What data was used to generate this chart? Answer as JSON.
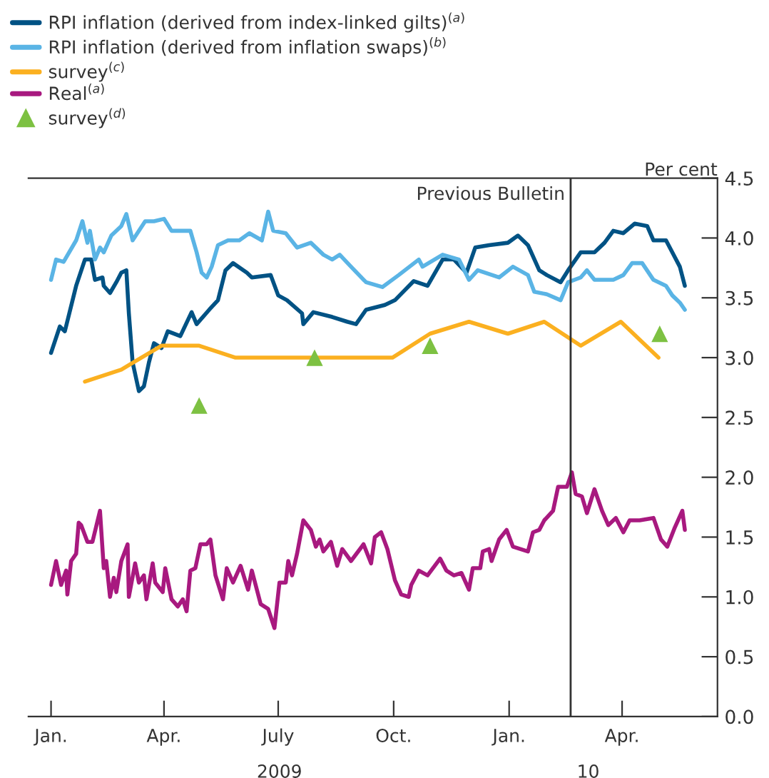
{
  "chart_data": {
    "type": "line",
    "ylabel": "Per cent",
    "xlim": [
      "2008-12-14",
      "2010-06-16"
    ],
    "xticks": [
      {
        "value": "2009-01-01",
        "label": "Jan."
      },
      {
        "value": "2009-04-01",
        "label": "Apr."
      },
      {
        "value": "2009-07-01",
        "label": "July"
      },
      {
        "value": "2009-10-01",
        "label": "Oct."
      },
      {
        "value": "2010-01-01",
        "label": "Jan."
      },
      {
        "value": "2010-04-01",
        "label": "Apr."
      }
    ],
    "x2lim": [
      "2008-12-14",
      "2010-06-16"
    ],
    "x2ticks": [
      {
        "value": "2009-07-02",
        "label": "2009"
      },
      {
        "value": "2010-03-05",
        "label": "10"
      }
    ],
    "ylim": [
      0,
      4.5
    ],
    "yticks": [
      {
        "value": 0,
        "label": "0.0"
      },
      {
        "value": 0.5,
        "label": "0.5"
      },
      {
        "value": 1,
        "label": "1.0"
      },
      {
        "value": 1.5,
        "label": "1.5"
      },
      {
        "value": 2,
        "label": "2.0"
      },
      {
        "value": 2.5,
        "label": "2.5"
      },
      {
        "value": 3,
        "label": "3.0"
      },
      {
        "value": 3.5,
        "label": "3.5"
      },
      {
        "value": 4,
        "label": "4.0"
      },
      {
        "value": 4.5,
        "label": "4.5"
      }
    ],
    "grid": false,
    "legend": "top left",
    "ref_lines": [
      {
        "axis": "x",
        "value": "2010-02-19",
        "label": "Previous Bulletin",
        "color": "#333333"
      }
    ],
    "series": [
      {
        "name": "RPI inflation (derived from index-linked gilts)$^{(a)}$",
        "color": "#005284",
        "x": [
          "2009-01-01",
          "2009-01-08",
          "2009-01-12",
          "2009-01-21",
          "2009-01-28",
          "2009-02-02",
          "2009-02-05",
          "2009-02-11",
          "2009-02-12",
          "2009-02-17",
          "2009-02-22",
          "2009-02-26",
          "2009-03-02",
          "2009-03-04",
          "2009-03-07",
          "2009-03-12",
          "2009-03-16",
          "2009-03-20",
          "2009-03-24",
          "2009-03-30",
          "2009-04-04",
          "2009-04-14",
          "2009-04-23",
          "2009-04-27",
          "2009-05-07",
          "2009-05-14",
          "2009-05-20",
          "2009-05-26",
          "2009-06-06",
          "2009-06-10",
          "2009-06-25",
          "2009-07-01",
          "2009-07-08",
          "2009-07-20",
          "2009-07-21",
          "2009-07-29",
          "2009-08-13",
          "2009-08-25",
          "2009-09-01",
          "2009-09-09",
          "2009-09-24",
          "2009-10-02",
          "2009-10-17",
          "2009-10-28",
          "2009-11-09",
          "2009-11-18",
          "2009-11-28",
          "2009-12-05",
          "2009-12-16",
          "2009-12-31",
          "2010-01-08",
          "2010-01-16",
          "2010-01-25",
          "2010-01-31",
          "2010-02-11",
          "2010-02-17",
          "2010-02-27",
          "2010-03-10",
          "2010-03-18",
          "2010-03-25",
          "2010-04-02",
          "2010-04-11",
          "2010-04-21",
          "2010-04-26",
          "2010-05-06",
          "2010-05-11",
          "2010-05-17",
          "2010-05-21"
        ],
        "values": [
          3.04,
          3.26,
          3.22,
          3.6,
          3.82,
          3.82,
          3.65,
          3.67,
          3.6,
          3.54,
          3.63,
          3.71,
          3.73,
          3.37,
          2.96,
          2.72,
          2.76,
          2.96,
          3.12,
          3.08,
          3.22,
          3.18,
          3.38,
          3.28,
          3.4,
          3.48,
          3.73,
          3.79,
          3.71,
          3.67,
          3.69,
          3.52,
          3.48,
          3.37,
          3.28,
          3.38,
          3.34,
          3.3,
          3.28,
          3.4,
          3.44,
          3.48,
          3.64,
          3.6,
          3.82,
          3.82,
          3.71,
          3.92,
          3.94,
          3.96,
          4.02,
          3.94,
          3.73,
          3.69,
          3.63,
          3.73,
          3.88,
          3.88,
          3.96,
          4.06,
          4.04,
          4.12,
          4.1,
          3.98,
          3.98,
          3.88,
          3.76,
          3.6
        ]
      },
      {
        "name": "RPI inflation (derived from inflation swaps)$^{(b)}$",
        "color": "#5ab4e5",
        "x": [
          "2009-01-01",
          "2009-01-05",
          "2009-01-11",
          "2009-01-21",
          "2009-01-26",
          "2009-01-30",
          "2009-02-01",
          "2009-02-05",
          "2009-02-09",
          "2009-02-12",
          "2009-02-18",
          "2009-02-26",
          "2009-03-02",
          "2009-03-07",
          "2009-03-17",
          "2009-03-24",
          "2009-04-01",
          "2009-04-07",
          "2009-04-22",
          "2009-04-27",
          "2009-05-01",
          "2009-05-05",
          "2009-05-09",
          "2009-05-14",
          "2009-05-22",
          "2009-05-31",
          "2009-06-08",
          "2009-06-18",
          "2009-06-23",
          "2009-06-27",
          "2009-07-07",
          "2009-07-16",
          "2009-07-27",
          "2009-08-06",
          "2009-08-13",
          "2009-08-19",
          "2009-08-28",
          "2009-09-09",
          "2009-09-22",
          "2009-10-05",
          "2009-10-21",
          "2009-10-24",
          "2009-11-09",
          "2009-11-22",
          "2009-11-30",
          "2009-12-07",
          "2009-12-24",
          "2010-01-04",
          "2010-01-16",
          "2010-01-21",
          "2010-01-31",
          "2010-02-11",
          "2010-02-17",
          "2010-02-27",
          "2010-03-04",
          "2010-03-10",
          "2010-03-25",
          "2010-04-02",
          "2010-04-09",
          "2010-04-17",
          "2010-04-26",
          "2010-05-06",
          "2010-05-11",
          "2010-05-17",
          "2010-05-21"
        ],
        "values": [
          3.65,
          3.82,
          3.8,
          3.98,
          4.14,
          3.96,
          4.06,
          3.82,
          3.92,
          3.88,
          4.02,
          4.1,
          4.2,
          3.98,
          4.14,
          4.14,
          4.16,
          4.06,
          4.06,
          3.88,
          3.71,
          3.67,
          3.76,
          3.94,
          3.98,
          3.98,
          4.04,
          3.98,
          4.22,
          4.06,
          4.04,
          3.92,
          3.96,
          3.86,
          3.82,
          3.86,
          3.76,
          3.63,
          3.59,
          3.69,
          3.82,
          3.76,
          3.86,
          3.82,
          3.65,
          3.73,
          3.67,
          3.76,
          3.69,
          3.55,
          3.53,
          3.48,
          3.63,
          3.67,
          3.73,
          3.65,
          3.65,
          3.69,
          3.79,
          3.79,
          3.65,
          3.6,
          3.52,
          3.46,
          3.4
        ]
      },
      {
        "name": "survey$^{(c)}$",
        "color": "#fbb020",
        "x": [
          "2009-01-28",
          "2009-02-26",
          "2009-03-30",
          "2009-04-29",
          "2009-05-28",
          "2009-09-30",
          "2009-10-30",
          "2009-11-30",
          "2009-12-31",
          "2010-01-29",
          "2010-02-27",
          "2010-03-31",
          "2010-04-30"
        ],
        "values": [
          2.8,
          2.9,
          3.1,
          3.1,
          3.0,
          3.0,
          3.2,
          3.3,
          3.2,
          3.3,
          3.1,
          3.3,
          3.0
        ]
      },
      {
        "name": "Real$^{(a)}$",
        "color": "#a8197f",
        "x": [
          "2009-01-01",
          "2009-01-05",
          "2009-01-09",
          "2009-01-13",
          "2009-01-14",
          "2009-01-17",
          "2009-01-21",
          "2009-01-23",
          "2009-01-25",
          "2009-01-30",
          "2009-02-03",
          "2009-02-09",
          "2009-02-12",
          "2009-02-14",
          "2009-02-17",
          "2009-02-20",
          "2009-02-22",
          "2009-02-26",
          "2009-03-03",
          "2009-03-04",
          "2009-03-09",
          "2009-03-12",
          "2009-03-16",
          "2009-03-18",
          "2009-03-23",
          "2009-03-25",
          "2009-03-31",
          "2009-04-02",
          "2009-04-07",
          "2009-04-12",
          "2009-04-16",
          "2009-04-19",
          "2009-04-22",
          "2009-04-26",
          "2009-04-30",
          "2009-05-05",
          "2009-05-08",
          "2009-05-12",
          "2009-05-18",
          "2009-05-21",
          "2009-05-26",
          "2009-06-01",
          "2009-06-07",
          "2009-06-10",
          "2009-06-17",
          "2009-06-23",
          "2009-06-28",
          "2009-07-02",
          "2009-07-07",
          "2009-07-09",
          "2009-07-12",
          "2009-07-16",
          "2009-07-21",
          "2009-07-27",
          "2009-07-31",
          "2009-08-03",
          "2009-08-06",
          "2009-08-12",
          "2009-08-17",
          "2009-08-21",
          "2009-08-28",
          "2009-09-07",
          "2009-09-13",
          "2009-09-16",
          "2009-09-21",
          "2009-09-26",
          "2009-10-02",
          "2009-10-07",
          "2009-10-13",
          "2009-10-15",
          "2009-10-21",
          "2009-10-28",
          "2009-11-07",
          "2009-11-12",
          "2009-11-18",
          "2009-11-24",
          "2009-11-30",
          "2009-12-03",
          "2009-12-09",
          "2009-12-11",
          "2009-12-16",
          "2009-12-18",
          "2009-12-24",
          "2009-12-30",
          "2010-01-04",
          "2010-01-16",
          "2010-01-20",
          "2010-01-25",
          "2010-01-29",
          "2010-02-05",
          "2010-02-09",
          "2010-02-16",
          "2010-02-20",
          "2010-02-23",
          "2010-02-28",
          "2010-03-04",
          "2010-03-10",
          "2010-03-16",
          "2010-03-21",
          "2010-03-27",
          "2010-04-02",
          "2010-04-07",
          "2010-04-15",
          "2010-04-26",
          "2010-05-02",
          "2010-05-07",
          "2010-05-13",
          "2010-05-19",
          "2010-05-21"
        ],
        "values": [
          1.1,
          1.3,
          1.1,
          1.22,
          1.02,
          1.3,
          1.36,
          1.62,
          1.6,
          1.46,
          1.46,
          1.72,
          1.24,
          1.3,
          1.0,
          1.16,
          1.04,
          1.3,
          1.44,
          1.0,
          1.28,
          1.12,
          1.18,
          0.98,
          1.28,
          1.12,
          1.04,
          1.24,
          0.98,
          0.92,
          0.98,
          0.88,
          1.22,
          1.24,
          1.44,
          1.44,
          1.48,
          1.18,
          0.98,
          1.24,
          1.12,
          1.26,
          1.06,
          1.22,
          0.94,
          0.9,
          0.74,
          1.12,
          1.12,
          1.3,
          1.18,
          1.36,
          1.64,
          1.56,
          1.42,
          1.48,
          1.38,
          1.46,
          1.26,
          1.4,
          1.3,
          1.44,
          1.28,
          1.5,
          1.54,
          1.4,
          1.14,
          1.02,
          1.0,
          1.1,
          1.22,
          1.18,
          1.32,
          1.22,
          1.18,
          1.2,
          1.06,
          1.24,
          1.24,
          1.38,
          1.4,
          1.3,
          1.48,
          1.56,
          1.42,
          1.38,
          1.54,
          1.56,
          1.64,
          1.72,
          1.92,
          1.92,
          2.04,
          1.86,
          1.84,
          1.7,
          1.9,
          1.72,
          1.6,
          1.66,
          1.54,
          1.64,
          1.64,
          1.66,
          1.48,
          1.42,
          1.58,
          1.72,
          1.56
        ]
      },
      {
        "type": "scatter",
        "name": "survey$^{(d)}$",
        "color": "#7dc142",
        "marker": "triangle",
        "x": [
          "2009-04-29",
          "2009-07-30",
          "2009-10-30",
          "2010-05-01"
        ],
        "values": [
          2.6,
          3.0,
          3.1,
          3.2
        ]
      }
    ]
  }
}
